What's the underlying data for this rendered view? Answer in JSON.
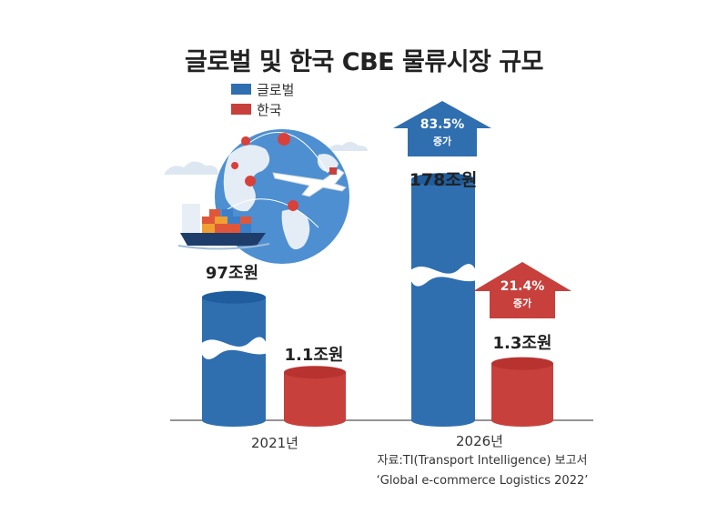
{
  "title": "글로벌 및 한국 CBE 물류시장 규모",
  "legend": [
    {
      "label": "글로벌",
      "color": "#2f6fb0"
    },
    {
      "label": "한국",
      "color": "#c8403c"
    }
  ],
  "colors": {
    "global": "#2f6fb0",
    "korea": "#c8403c",
    "global_top": "#1f5d9e",
    "korea_top": "#b8332f"
  },
  "chart_data": {
    "type": "bar",
    "categories": [
      "2021년",
      "2026년"
    ],
    "series": [
      {
        "name": "글로벌",
        "values": [
          97,
          178
        ],
        "labels": [
          "97조원",
          "178조원"
        ]
      },
      {
        "name": "한국",
        "values": [
          1.1,
          1.3
        ],
        "labels": [
          "1.1조원",
          "1.3조원"
        ]
      }
    ],
    "units": "조원",
    "annotations": [
      {
        "series": "글로벌",
        "text": "83.5%",
        "sub": "증가"
      },
      {
        "series": "한국",
        "text": "21.4%",
        "sub": "증가"
      }
    ]
  },
  "source": {
    "line1": "자료:TI(Transport Intelligence) 보고서",
    "line2": "‘Global e-commerce Logistics 2022’"
  },
  "illustration": {
    "icons": [
      "globe-icon",
      "airplane-icon",
      "cargo-ship-icon",
      "location-pin-icon"
    ]
  }
}
